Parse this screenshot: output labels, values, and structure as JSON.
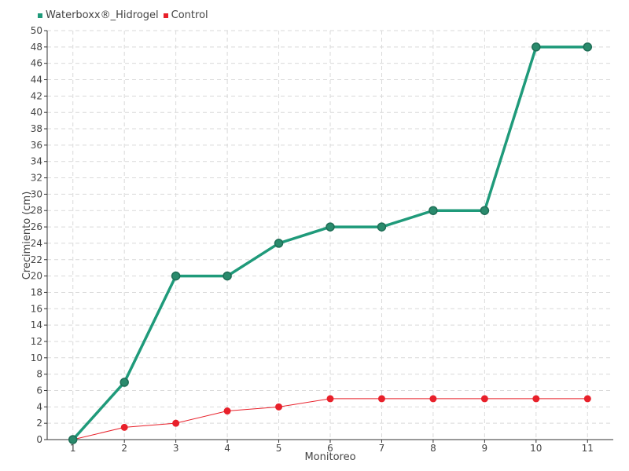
{
  "chart_data": {
    "type": "line",
    "categories": [
      "1",
      "2",
      "3",
      "4",
      "5",
      "6",
      "7",
      "8",
      "9",
      "10",
      "11"
    ],
    "series": [
      {
        "name": "Waterboxx®_Hidrogel",
        "color": "#1f9a7a",
        "values": [
          0,
          7,
          20,
          20,
          24,
          26,
          26,
          28,
          28,
          48,
          48
        ]
      },
      {
        "name": "Control",
        "color": "#e8202a",
        "values": [
          0,
          1.5,
          2,
          3.5,
          4,
          5,
          5,
          5,
          5,
          5,
          5
        ]
      }
    ],
    "xlabel": "Monitoreo",
    "ylabel": "Crecimiento (cm)",
    "ylim": [
      0,
      50
    ],
    "ytick_step": 2,
    "grid": true,
    "legend_position": "top-left"
  }
}
